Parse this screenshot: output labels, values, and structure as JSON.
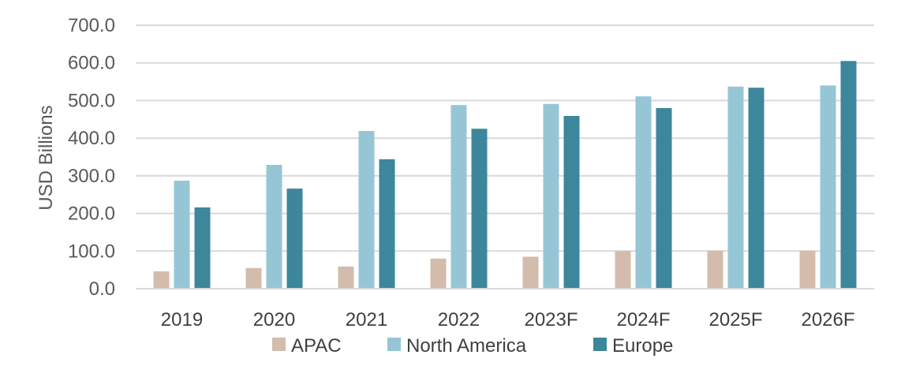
{
  "chart_data": {
    "type": "bar",
    "title": "",
    "xlabel": "",
    "ylabel": "USD Billions",
    "ylim": [
      0,
      700
    ],
    "ytick_step": 100,
    "ytick_labels": [
      "0.0",
      "100.0",
      "200.0",
      "300.0",
      "400.0",
      "500.0",
      "600.0",
      "700.0"
    ],
    "grid": true,
    "legend_position": "bottom",
    "categories": [
      "2019",
      "2020",
      "2021",
      "2022",
      "2023F",
      "2024F",
      "2025F",
      "2026F"
    ],
    "series": [
      {
        "name": "APAC",
        "color": "#D3BCAB",
        "values": [
          46,
          55,
          59,
          80,
          85,
          100,
          101,
          101
        ]
      },
      {
        "name": "North America",
        "color": "#96C6D6",
        "values": [
          287,
          329,
          419,
          488,
          491,
          511,
          537,
          540
        ]
      },
      {
        "name": "Europe",
        "color": "#3D879C",
        "values": [
          216,
          266,
          344,
          425,
          459,
          480,
          534,
          605
        ]
      }
    ]
  }
}
